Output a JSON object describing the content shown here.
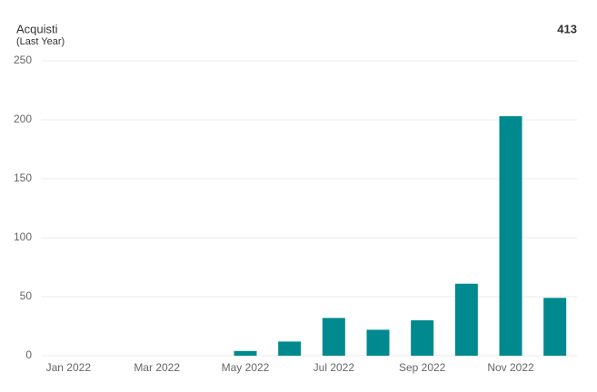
{
  "chart_data": {
    "type": "bar",
    "title": "Acquisti",
    "subtitle": "(Last Year)",
    "total": 413,
    "categories": [
      "Jan 2022",
      null,
      "Mar 2022",
      null,
      "May 2022",
      null,
      "Jul 2022",
      null,
      "Sep 2022",
      null,
      "Nov 2022",
      null
    ],
    "values": [
      0,
      0,
      0,
      0,
      4,
      12,
      32,
      22,
      30,
      61,
      203,
      49
    ],
    "color": "#00898f",
    "ylim": [
      0,
      250
    ],
    "yticks": [
      0,
      50,
      100,
      150,
      200,
      250
    ],
    "grid": true
  }
}
